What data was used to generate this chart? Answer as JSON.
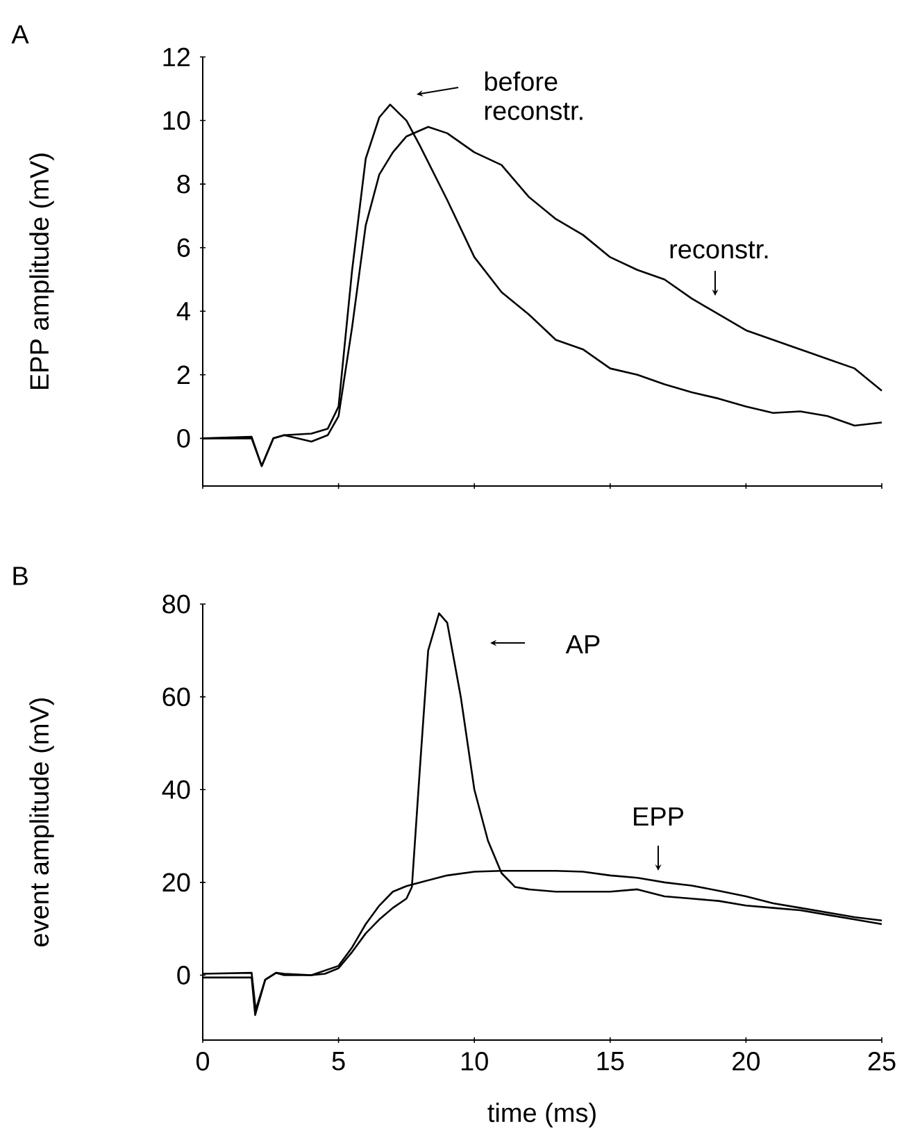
{
  "chart_data": [
    {
      "type": "line",
      "title": "A",
      "ylabel": "EPP amplitude (mV)",
      "xlim": [
        0,
        25
      ],
      "ylim": [
        -1.5,
        12
      ],
      "xticks": [
        0,
        5,
        10,
        15,
        20,
        25
      ],
      "yticks": [
        0,
        2,
        4,
        6,
        8,
        10,
        12
      ],
      "tick_labels": "y",
      "line_style": "solid",
      "series": [
        {
          "color": "#000000",
          "x": [
            0,
            1.8,
            2.17,
            2.6,
            3,
            4,
            4.6,
            5,
            5.5,
            6,
            6.5,
            6.9,
            7.5,
            8,
            9,
            10,
            11,
            12,
            13,
            14,
            15,
            16,
            17,
            18,
            19,
            20,
            21,
            22,
            23,
            24,
            25
          ],
          "values": [
            0,
            0,
            -0.87,
            0,
            0.1,
            0.15,
            0.3,
            1.0,
            5.3,
            8.8,
            10.1,
            10.5,
            10.0,
            9.2,
            7.5,
            5.7,
            4.6,
            3.9,
            3.1,
            2.8,
            2.2,
            2.0,
            1.7,
            1.45,
            1.25,
            1.0,
            0.8,
            0.85,
            0.7,
            0.4,
            0.5
          ]
        },
        {
          "color": "#000000",
          "x": [
            0,
            1.8,
            2.17,
            2.6,
            3,
            4,
            4.6,
            5,
            5.5,
            6,
            6.5,
            7,
            7.5,
            8.3,
            9,
            10,
            10.5,
            11,
            12,
            13,
            14,
            15,
            16,
            17,
            18,
            19,
            20,
            21,
            22,
            23,
            24,
            25
          ],
          "values": [
            0,
            0.05,
            -0.87,
            0,
            0.1,
            -0.1,
            0.1,
            0.7,
            3.5,
            6.7,
            8.3,
            9.0,
            9.5,
            9.8,
            9.6,
            9.0,
            8.8,
            8.6,
            7.6,
            6.9,
            6.4,
            5.7,
            5.3,
            5.0,
            4.4,
            3.9,
            3.4,
            3.1,
            2.8,
            2.5,
            2.2,
            1.5
          ]
        }
      ],
      "annotations": [
        "before reconstr.",
        "reconstr."
      ]
    },
    {
      "type": "line",
      "title": "B",
      "xlabel": "time (ms)",
      "ylabel": "event amplitude (mV)",
      "xlim": [
        0,
        25
      ],
      "ylim": [
        -14,
        80
      ],
      "xticks": [
        0,
        5,
        10,
        15,
        20,
        25
      ],
      "yticks": [
        0,
        20,
        40,
        60,
        80
      ],
      "line_style": "solid",
      "series": [
        {
          "color": "#000000",
          "x": [
            0,
            1.8,
            1.93,
            2.3,
            2.7,
            3,
            4,
            4.5,
            5,
            5.5,
            6,
            6.5,
            7,
            7.5,
            7.7,
            8,
            8.3,
            8.7,
            9,
            9.5,
            10,
            10.5,
            11,
            11.5,
            12,
            13,
            14,
            15,
            16,
            17,
            18,
            19,
            20,
            21,
            22,
            23,
            24,
            25
          ],
          "values": [
            -0.5,
            -0.5,
            -8.6,
            -1,
            0.5,
            0,
            0,
            0.3,
            1.5,
            5,
            9,
            12,
            14.5,
            16.5,
            19,
            45,
            70,
            78,
            76,
            60,
            40,
            29,
            22,
            19,
            18.5,
            18,
            18,
            18,
            18.5,
            17,
            16.5,
            16,
            15,
            14.5,
            14,
            13,
            12,
            11
          ]
        },
        {
          "color": "#000000",
          "x": [
            0,
            1.8,
            1.95,
            2.3,
            2.7,
            3,
            4,
            5,
            5.5,
            6,
            6.5,
            7,
            7.5,
            8,
            9,
            10,
            11,
            12,
            13,
            14,
            15,
            16,
            17,
            18,
            19,
            20,
            21,
            22,
            23,
            24,
            25
          ],
          "values": [
            0.3,
            0.5,
            -7.5,
            -1,
            0.5,
            0.3,
            0,
            2,
            6,
            11,
            15,
            18,
            19.2,
            20,
            21.5,
            22.3,
            22.5,
            22.5,
            22.5,
            22.3,
            21.5,
            21,
            20,
            19.3,
            18.2,
            17,
            15.5,
            14.5,
            13.5,
            12.5,
            11.8
          ]
        }
      ],
      "annotations": [
        "AP",
        "EPP"
      ]
    }
  ]
}
